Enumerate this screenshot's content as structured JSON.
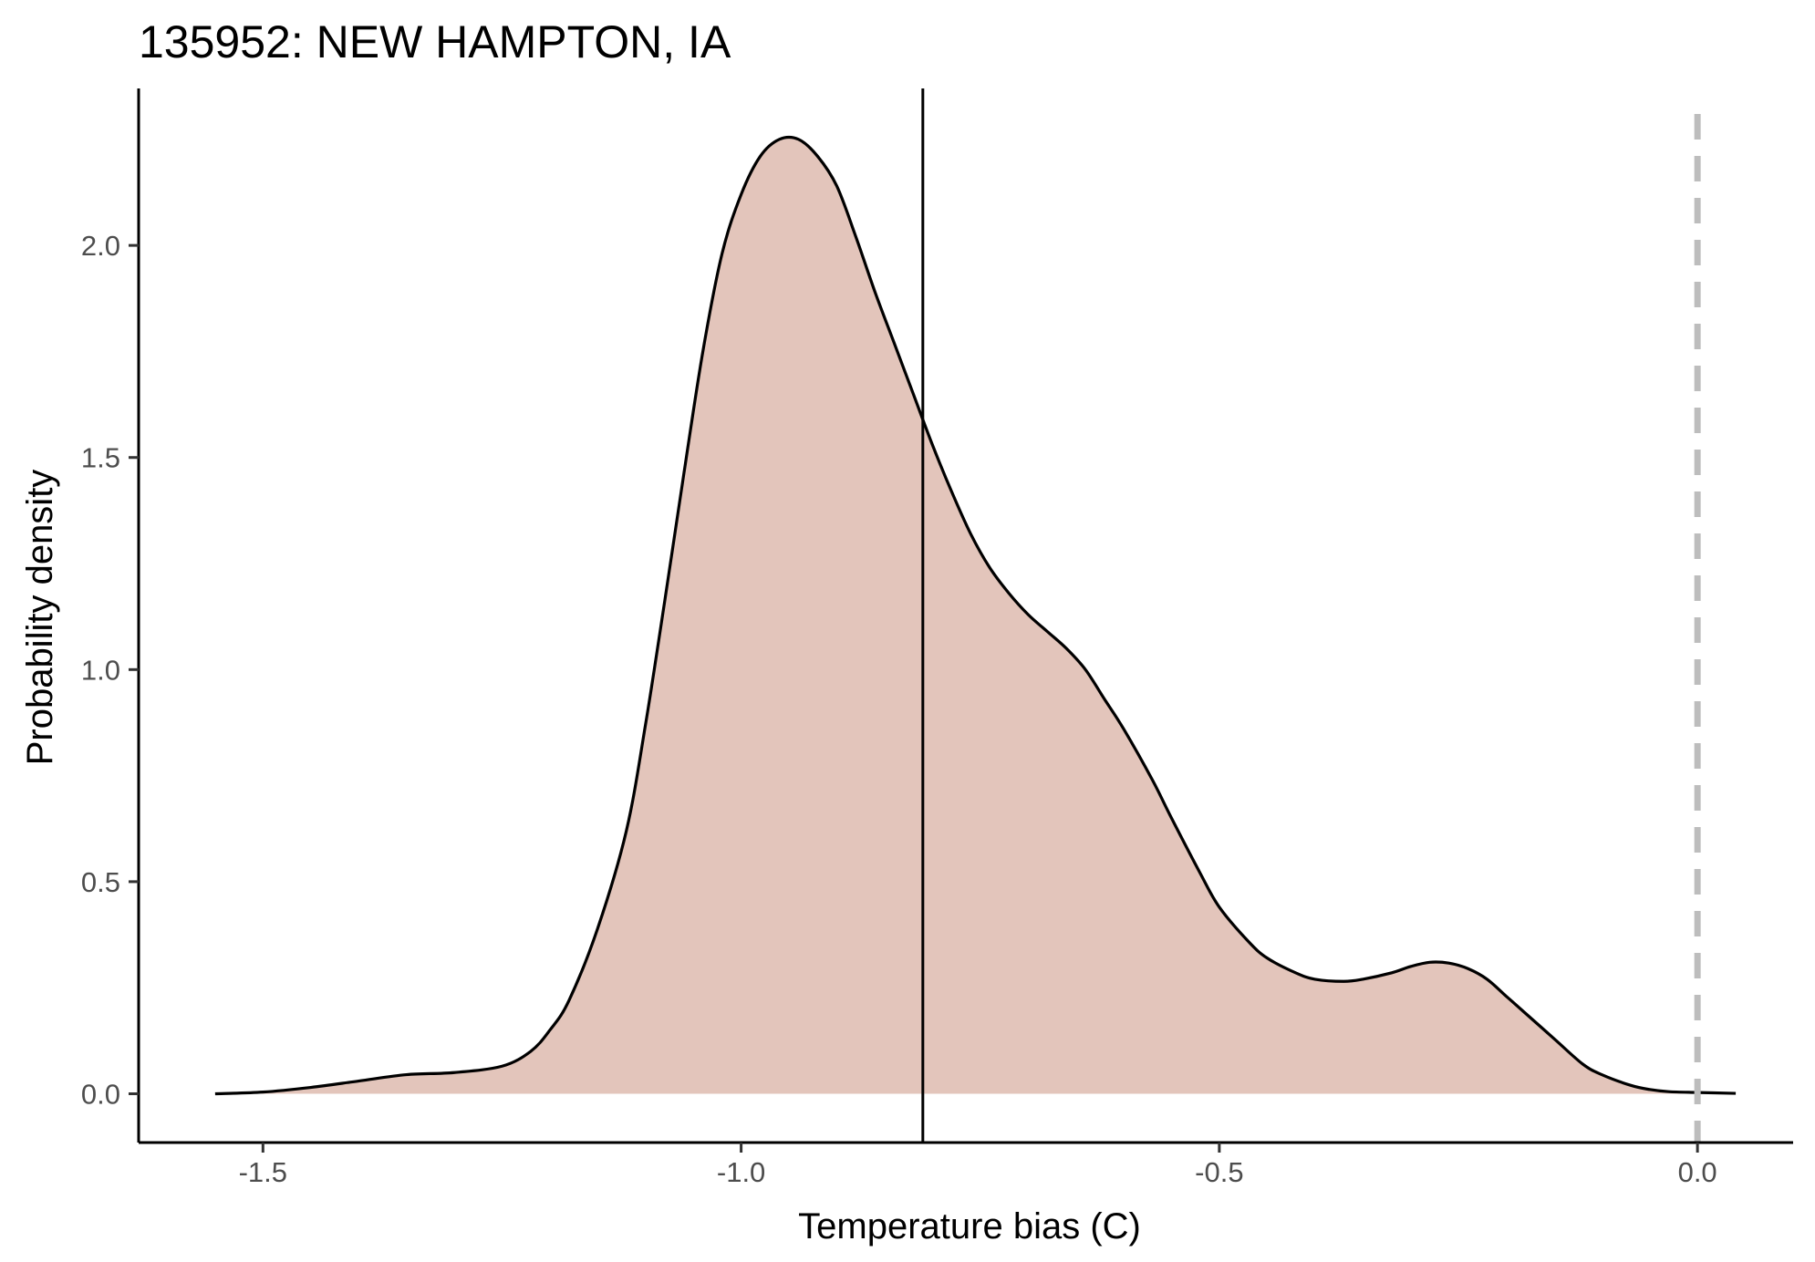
{
  "chart_data": {
    "type": "area",
    "title": "135952: NEW HAMPTON, IA",
    "xlabel": "Temperature bias (C)",
    "ylabel": "Probability density",
    "xlim": [
      -1.63,
      0.1
    ],
    "ylim": [
      -0.115,
      2.37
    ],
    "x_ticks": [
      {
        "value": -1.5,
        "label": "-1.5"
      },
      {
        "value": -1.0,
        "label": "-1.0"
      },
      {
        "value": -0.5,
        "label": "-0.5"
      },
      {
        "value": 0.0,
        "label": "0.0"
      }
    ],
    "y_ticks": [
      {
        "value": 0.0,
        "label": "0.0"
      },
      {
        "value": 0.5,
        "label": "0.5"
      },
      {
        "value": 1.0,
        "label": "1.0"
      },
      {
        "value": 1.5,
        "label": "1.5"
      },
      {
        "value": 2.0,
        "label": "2.0"
      }
    ],
    "grid": false,
    "legend": "none",
    "fill_color": "#e3c5bb",
    "line_color": "#000000",
    "reference_lines": {
      "mean_bias": {
        "x": -0.81,
        "color": "#000000",
        "style": "solid"
      },
      "zero_bias": {
        "x": 0.0,
        "color": "#bdbdbd",
        "style": "dashed"
      }
    },
    "density": {
      "x": [
        -1.55,
        -1.5,
        -1.45,
        -1.4,
        -1.35,
        -1.3,
        -1.25,
        -1.22,
        -1.2,
        -1.18,
        -1.15,
        -1.12,
        -1.1,
        -1.08,
        -1.06,
        -1.04,
        -1.02,
        -1.0,
        -0.98,
        -0.96,
        -0.94,
        -0.92,
        -0.9,
        -0.88,
        -0.86,
        -0.84,
        -0.82,
        -0.8,
        -0.78,
        -0.76,
        -0.74,
        -0.72,
        -0.7,
        -0.68,
        -0.66,
        -0.64,
        -0.62,
        -0.6,
        -0.57,
        -0.55,
        -0.52,
        -0.5,
        -0.47,
        -0.45,
        -0.42,
        -0.4,
        -0.37,
        -0.35,
        -0.32,
        -0.3,
        -0.28,
        -0.26,
        -0.24,
        -0.22,
        -0.2,
        -0.18,
        -0.15,
        -0.12,
        -0.1,
        -0.07,
        -0.05,
        -0.03,
        0.0,
        0.04
      ],
      "y": [
        0.0,
        0.004,
        0.015,
        0.03,
        0.045,
        0.05,
        0.065,
        0.1,
        0.15,
        0.22,
        0.39,
        0.62,
        0.87,
        1.16,
        1.46,
        1.75,
        1.98,
        2.12,
        2.21,
        2.25,
        2.25,
        2.21,
        2.14,
        2.02,
        1.89,
        1.77,
        1.65,
        1.53,
        1.42,
        1.32,
        1.24,
        1.18,
        1.13,
        1.09,
        1.05,
        1.0,
        0.93,
        0.86,
        0.74,
        0.65,
        0.52,
        0.44,
        0.36,
        0.32,
        0.285,
        0.27,
        0.265,
        0.27,
        0.285,
        0.3,
        0.31,
        0.308,
        0.295,
        0.27,
        0.23,
        0.19,
        0.13,
        0.07,
        0.045,
        0.02,
        0.01,
        0.005,
        0.003,
        0.001
      ]
    }
  }
}
